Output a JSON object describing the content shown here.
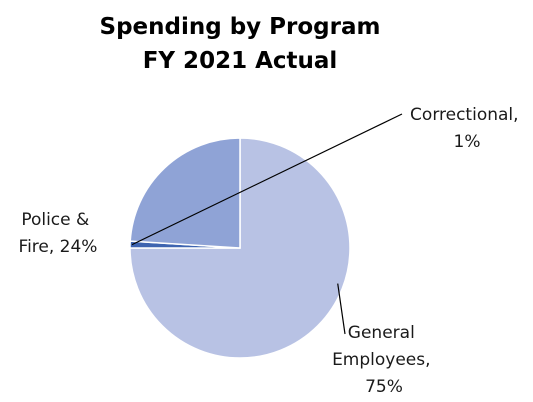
{
  "chart_data": {
    "type": "pie",
    "title": "Spending by Program",
    "subtitle": "FY 2021 Actual",
    "categories": [
      "General Employees",
      "Correctional",
      "Police & Fire"
    ],
    "values": [
      75,
      1,
      24
    ],
    "labels": [
      {
        "line1": "General",
        "line2": "Employees,",
        "line3": "75%"
      },
      {
        "line1": "Correctional,",
        "line2": "1%"
      },
      {
        "line1": "Police &",
        "line2": "Fire, 24%"
      }
    ],
    "colors": [
      "#b8c2e4",
      "#3e64b0",
      "#8fa3d6"
    ],
    "start_angle_deg": 0,
    "direction": "clockwise",
    "legend": "none"
  }
}
